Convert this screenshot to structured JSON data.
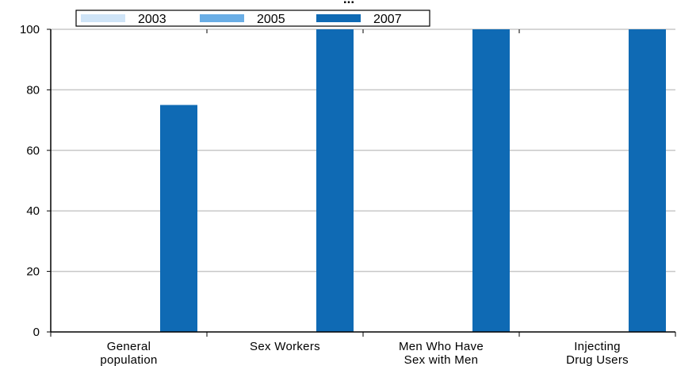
{
  "chart_data": {
    "type": "bar",
    "title_fragment": "...",
    "categories": [
      [
        "General",
        "population"
      ],
      [
        "Sex Workers"
      ],
      [
        "Men Who Have",
        "Sex with Men"
      ],
      [
        "Injecting",
        "Drug Users"
      ]
    ],
    "series": [
      {
        "name": "2003",
        "color": "#cfe4f7",
        "values": [
          null,
          null,
          null,
          null
        ]
      },
      {
        "name": "2005",
        "color": "#6aaee6",
        "values": [
          null,
          null,
          null,
          null
        ]
      },
      {
        "name": "2007",
        "color": "#0f6ab4",
        "values": [
          75,
          100,
          100,
          100
        ]
      }
    ],
    "yticks": [
      0,
      20,
      40,
      60,
      80,
      100
    ],
    "ylim": [
      0,
      100
    ],
    "grid": true,
    "legend_position": "top-left"
  }
}
